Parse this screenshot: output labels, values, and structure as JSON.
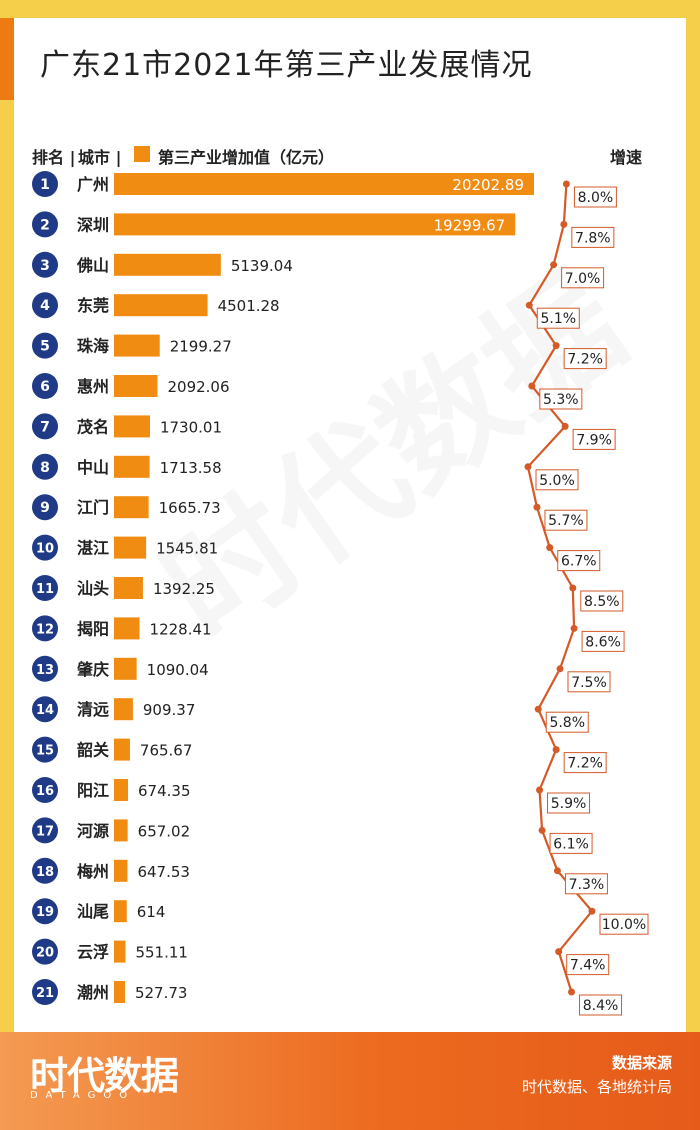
{
  "title": "广东21市2021年第三产业发展情况",
  "header": {
    "rank_label": "排名 |",
    "city_label": "城市 |",
    "legend_label": "第三产业增加值（亿元）",
    "growth_label": "增速"
  },
  "colors": {
    "bar": "#f08c12",
    "rank_circle": "#1f3b87",
    "growth_line": "#d45a28",
    "frame": "#f5cf49",
    "footer": "#ec6a1f"
  },
  "chart_data": {
    "type": "bar",
    "categories": [
      "广州",
      "深圳",
      "佛山",
      "东莞",
      "珠海",
      "惠州",
      "茂名",
      "中山",
      "江门",
      "湛江",
      "汕头",
      "揭阳",
      "肇庆",
      "清远",
      "韶关",
      "阳江",
      "河源",
      "梅州",
      "汕尾",
      "云浮",
      "潮州"
    ],
    "ranks": [
      1,
      2,
      3,
      4,
      5,
      6,
      7,
      8,
      9,
      10,
      11,
      12,
      13,
      14,
      15,
      16,
      17,
      18,
      19,
      20,
      21
    ],
    "series": [
      {
        "name": "第三产业增加值（亿元）",
        "values": [
          20202.89,
          19299.67,
          5139.04,
          4501.28,
          2199.27,
          2092.06,
          1730.01,
          1713.58,
          1665.73,
          1545.81,
          1392.25,
          1228.41,
          1090.04,
          909.37,
          765.67,
          674.35,
          657.02,
          647.53,
          614,
          551.11,
          527.73
        ],
        "labels": [
          "20202.89",
          "19299.67",
          "5139.04",
          "4501.28",
          "2199.27",
          "2092.06",
          "1730.01",
          "1713.58",
          "1665.73",
          "1545.81",
          "1392.25",
          "1228.41",
          "1090.04",
          "909.37",
          "765.67",
          "674.35",
          "657.02",
          "647.53",
          "614",
          "551.11",
          "527.73"
        ]
      },
      {
        "name": "增速",
        "values": [
          8.0,
          7.8,
          7.0,
          5.1,
          7.2,
          5.3,
          7.9,
          5.0,
          5.7,
          6.7,
          8.5,
          8.6,
          7.5,
          5.8,
          7.2,
          5.9,
          6.1,
          7.3,
          10.0,
          7.4,
          8.4
        ],
        "labels": [
          "8.0%",
          "7.8%",
          "7.0%",
          "5.1%",
          "7.2%",
          "5.3%",
          "7.9%",
          "5.0%",
          "5.7%",
          "6.7%",
          "8.5%",
          "8.6%",
          "7.5%",
          "5.8%",
          "7.2%",
          "5.9%",
          "6.1%",
          "7.3%",
          "10.0%",
          "7.4%",
          "8.4%"
        ]
      }
    ],
    "xlim": [
      0,
      20202.89
    ],
    "growth_range": [
      5.0,
      10.0
    ]
  },
  "footer": {
    "logo": "时代数据",
    "logo_sub": "DATAGOO",
    "source_title": "数据来源",
    "source_text": "时代数据、各地统计局"
  }
}
